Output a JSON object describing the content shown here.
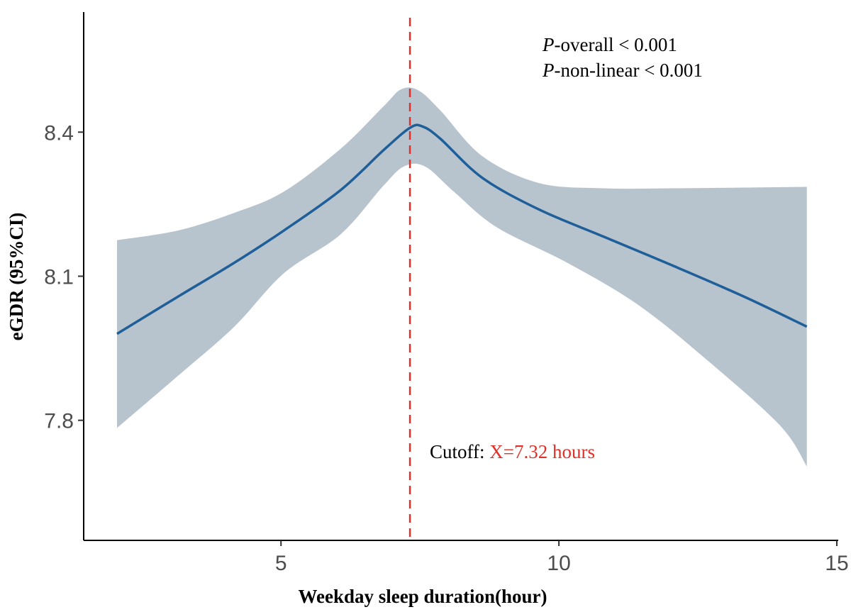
{
  "chart_data": {
    "type": "line",
    "title": "",
    "xlabel": "Weekday sleep duration(hour)",
    "ylabel": "eGDR (95%CI)",
    "xlim": [
      1.45,
      15.0
    ],
    "ylim": [
      7.55,
      8.65
    ],
    "xticks": [
      5,
      10,
      15
    ],
    "xtick_labels": [
      "5",
      "10",
      "15"
    ],
    "yticks": [
      7.8,
      8.1,
      8.4
    ],
    "ytick_labels": [
      "7.8",
      "8.1",
      "8.4"
    ],
    "grid": false,
    "series": [
      {
        "name": "eGDR",
        "color": "#1f5f99",
        "x": [
          2.05,
          3.14,
          4.16,
          5.05,
          6.07,
          6.84,
          7.32,
          7.54,
          7.86,
          8.62,
          9.64,
          10.79,
          12.07,
          13.34,
          14.46
        ],
        "y": [
          7.98,
          8.057,
          8.128,
          8.195,
          8.279,
          8.362,
          8.409,
          8.412,
          8.387,
          8.305,
          8.239,
          8.183,
          8.121,
          8.057,
          7.995
        ]
      }
    ],
    "ci_band": {
      "color": "#b7c3cd",
      "upper_x": [
        2.05,
        3.14,
        4.16,
        5.05,
        6.07,
        6.84,
        7.16,
        7.47,
        7.86,
        8.62,
        9.64,
        10.79,
        12.07,
        14.46
      ],
      "upper_y": [
        8.175,
        8.195,
        8.232,
        8.276,
        8.365,
        8.453,
        8.489,
        8.487,
        8.446,
        8.35,
        8.294,
        8.283,
        8.283,
        8.286
      ],
      "lower_x": [
        2.05,
        3.14,
        4.16,
        5.05,
        6.07,
        6.84,
        7.22,
        7.6,
        8.11,
        8.88,
        10.15,
        11.43,
        12.7,
        13.98,
        14.46
      ],
      "lower_y": [
        7.784,
        7.892,
        7.995,
        8.106,
        8.187,
        8.288,
        8.329,
        8.328,
        8.276,
        8.202,
        8.128,
        8.04,
        7.922,
        7.789,
        7.704
      ]
    },
    "cutoff": {
      "x": 7.32,
      "color": "#e0302a",
      "label_prefix": "Cutoff: ",
      "label_value": "X=7.32 hours"
    },
    "annotations": {
      "p_overall_italic": "P",
      "p_overall_rest": "-overall < 0.001",
      "p_nonlinear_italic": "P",
      "p_nonlinear_rest": "-non-linear < 0.001"
    }
  }
}
